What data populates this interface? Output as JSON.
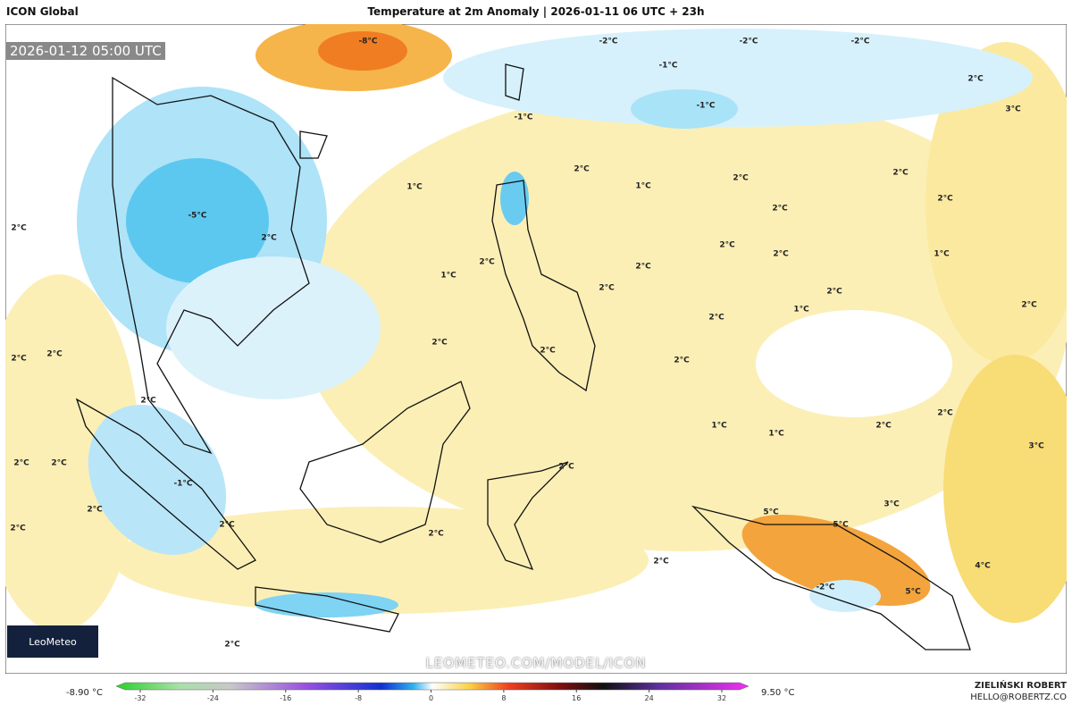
{
  "header": {
    "model": "ICON Global",
    "title": "Temperature at 2m Anomaly | 2026-01-11 06 UTC + 23h",
    "valid_time": "2026-01-12 05:00 UTC"
  },
  "branding": {
    "logo": "LeoMeteo",
    "watermark": "LEOMETEO.COM/MODEL/ICON",
    "author": "ZIELIŃSKI ROBERT",
    "contact": "HELLO@ROBERTZ.CO"
  },
  "colorbar": {
    "min_label": "-8.90 °C",
    "max_label": "9.50 °C",
    "ticks": [
      -32,
      -24,
      -16,
      -8,
      0,
      8,
      16,
      24,
      32
    ]
  },
  "contour_labels": [
    "-8°C",
    "-2°C",
    "-2°C",
    "-2°C",
    "-1°C",
    "-1°C",
    "-1°C",
    "2°C",
    "3°C",
    "2°C",
    "1°C",
    "1°C",
    "2°C",
    "2°C",
    "2°C",
    "2°C",
    "2°C",
    "2°C",
    "2°C",
    "1°C",
    "1°C",
    "2°C",
    "2°C",
    "2°C",
    "2°C",
    "2°C",
    "1°C",
    "2°C",
    "2°C",
    "2°C",
    "2°C",
    "2°C",
    "2°C",
    "1°C",
    "1°C",
    "2°C",
    "2°C",
    "3°C",
    "2°C",
    "2°C",
    "2°C",
    "2°C",
    "2°C",
    "2°C",
    "5°C",
    "5°C",
    "3°C",
    "2°C",
    "4°C",
    "5°C",
    "-2°C",
    "2°C",
    "2°C",
    "-5°C",
    "2°C",
    "-1°C",
    "2°C"
  ]
}
